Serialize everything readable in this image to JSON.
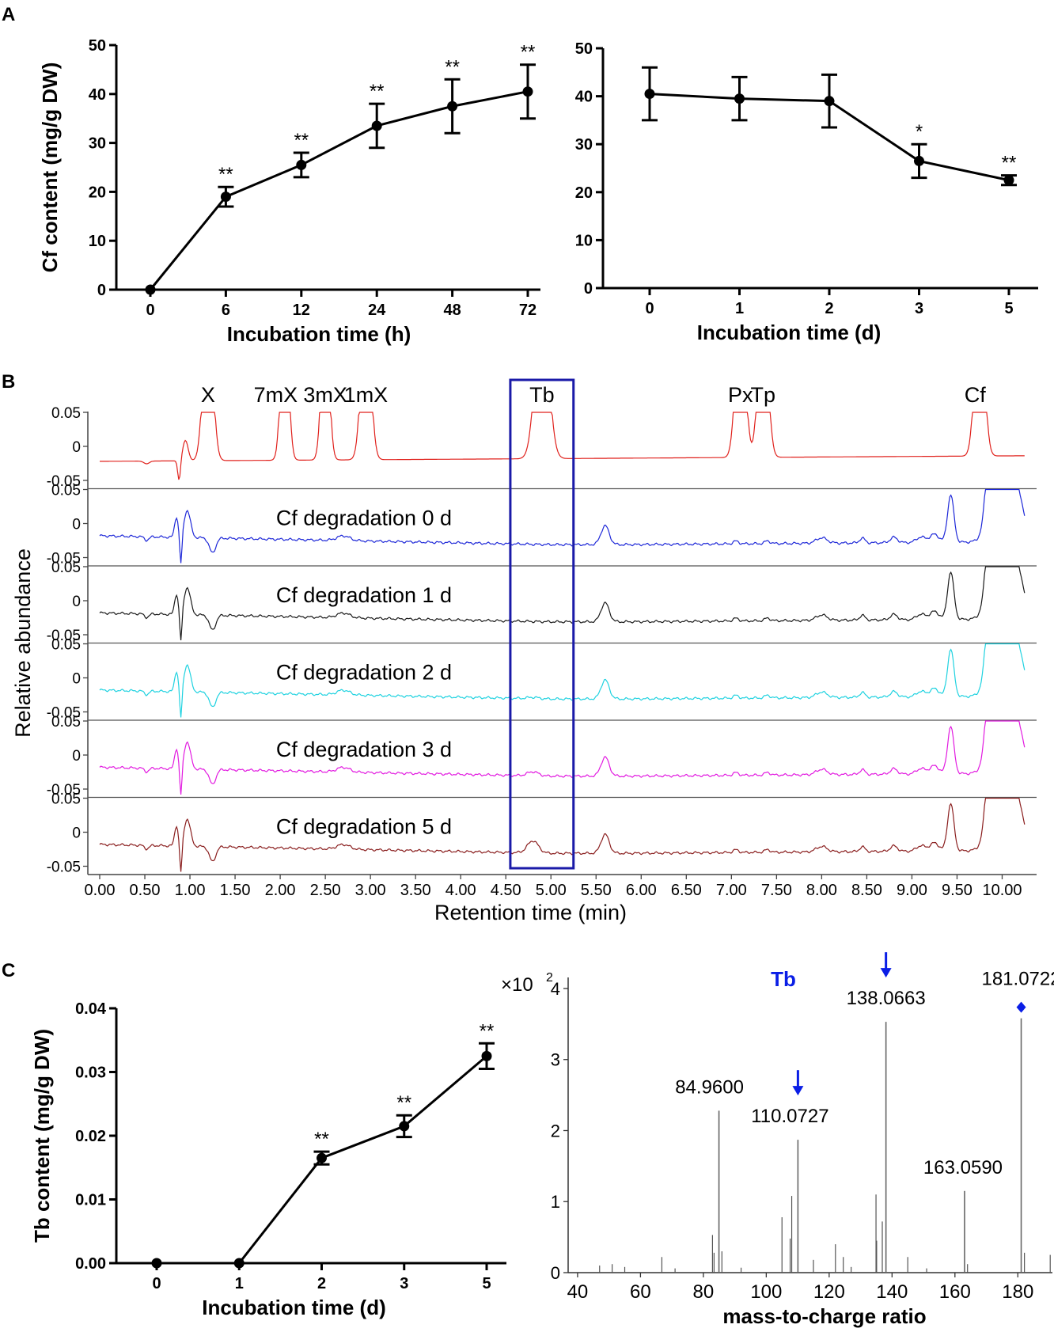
{
  "panel_labels": {
    "a": "A",
    "b": "B",
    "c": "C"
  },
  "colors": {
    "axis": "#000000",
    "box": "#1a1aa8",
    "accent": "#0a1ee6"
  },
  "chart_data": [
    {
      "id": "A1",
      "type": "line",
      "title": "",
      "xlabel": "Incubation time (h)",
      "ylabel": "Cf content (mg/g DW)",
      "categories": [
        "0",
        "6",
        "12",
        "24",
        "48",
        "72"
      ],
      "values": [
        0,
        19,
        25.5,
        33.5,
        37.5,
        40.5
      ],
      "errors": [
        0,
        2,
        2.5,
        4.5,
        5.5,
        5.5
      ],
      "significance": [
        "",
        "**",
        "**",
        "**",
        "**",
        "**"
      ],
      "ylim": [
        0,
        50
      ],
      "yticks": [
        "0",
        "10",
        "20",
        "30",
        "40",
        "50"
      ]
    },
    {
      "id": "A2",
      "type": "line",
      "title": "",
      "xlabel": "Incubation time (d)",
      "ylabel": "",
      "categories": [
        "0",
        "1",
        "2",
        "3",
        "5"
      ],
      "values": [
        40.5,
        39.5,
        39,
        26.5,
        22.5
      ],
      "errors": [
        5.5,
        4.5,
        5.5,
        3.5,
        1
      ],
      "significance": [
        "",
        "",
        "",
        "*",
        "**"
      ],
      "ylim": [
        0,
        50
      ],
      "yticks": [
        "0",
        "10",
        "20",
        "30",
        "40",
        "50"
      ]
    },
    {
      "id": "B",
      "type": "line",
      "title": "",
      "xlabel": "Retention time (min)",
      "ylabel": "Relative abundance",
      "xlim": [
        0,
        10.25
      ],
      "xticks": [
        "0.00",
        "0.50",
        "1.00",
        "1.50",
        "2.00",
        "2.50",
        "3.00",
        "3.50",
        "4.00",
        "4.50",
        "5.00",
        "5.50",
        "6.00",
        "6.50",
        "7.00",
        "7.50",
        "8.00",
        "8.50",
        "9.00",
        "9.50",
        "10.00"
      ],
      "yticks": [
        "0.05",
        "0",
        "-0.05"
      ],
      "ylim": [
        -0.05,
        0.05
      ],
      "peak_labels": [
        {
          "text": "X",
          "rt": 1.2
        },
        {
          "text": "7mX",
          "rt": 1.95
        },
        {
          "text": "3mX",
          "rt": 2.5
        },
        {
          "text": "1mX",
          "rt": 2.95
        },
        {
          "text": "Tb",
          "rt": 4.9
        },
        {
          "text": "Px",
          "rt": 7.1
        },
        {
          "text": "Tp",
          "rt": 7.35
        },
        {
          "text": "Cf",
          "rt": 9.7
        }
      ],
      "highlight_box": {
        "label": "Tb",
        "rt_range": [
          4.55,
          5.25
        ]
      },
      "series": [
        {
          "name": "",
          "color": "#e0211c",
          "kind": "standard"
        },
        {
          "name": "Cf degradation 0 d",
          "color": "#1e28d8",
          "tb": 0
        },
        {
          "name": "Cf degradation 1 d",
          "color": "#1a1a1a",
          "tb": 0
        },
        {
          "name": "Cf degradation 2 d",
          "color": "#1fd2e0",
          "tb": 0.002
        },
        {
          "name": "Cf degradation 3 d",
          "color": "#e21be0",
          "tb": 0.006
        },
        {
          "name": "Cf degradation 5 d",
          "color": "#8a1e1e",
          "tb": 0.018
        }
      ]
    },
    {
      "id": "C1",
      "type": "line",
      "title": "",
      "xlabel": "Incubation time (d)",
      "ylabel": "Tb content (mg/g DW)",
      "categories": [
        "0",
        "1",
        "2",
        "3",
        "5"
      ],
      "values": [
        0,
        0,
        0.0165,
        0.0215,
        0.0325
      ],
      "errors": [
        0,
        0,
        0.001,
        0.0017,
        0.002
      ],
      "significance": [
        "",
        "",
        "**",
        "**",
        "**"
      ],
      "ylim": [
        0,
        0.04
      ],
      "yticks": [
        "0.00",
        "0.01",
        "0.02",
        "0.03",
        "0.04"
      ]
    },
    {
      "id": "C2",
      "type": "bar",
      "title": "Tb",
      "xlabel": "mass-to-charge ratio",
      "ylabel": "",
      "y_multiplier": "×10",
      "y_exponent": "2",
      "xlim": [
        37,
        191
      ],
      "ylim": [
        0,
        4.1
      ],
      "xticks": [
        "40",
        "60",
        "80",
        "100",
        "120",
        "140",
        "160",
        "180"
      ],
      "yticks": [
        "0",
        "1",
        "2",
        "3",
        "4"
      ],
      "major_peaks": [
        {
          "mz": 84.96,
          "intensity": 2.28,
          "label": "84.9600",
          "marker": ""
        },
        {
          "mz": 110.0727,
          "intensity": 1.87,
          "label": "110.0727",
          "marker": "arrow"
        },
        {
          "mz": 138.0663,
          "intensity": 3.53,
          "label": "138.0663",
          "marker": "arrow"
        },
        {
          "mz": 163.059,
          "intensity": 1.15,
          "label": "163.0590",
          "marker": ""
        },
        {
          "mz": 181.0722,
          "intensity": 3.58,
          "label": "181.0722",
          "marker": "diamond"
        }
      ],
      "minor_peaks": [
        {
          "mz": 66.8,
          "intensity": 0.22
        },
        {
          "mz": 82.9,
          "intensity": 0.53
        },
        {
          "mz": 83.4,
          "intensity": 0.28
        },
        {
          "mz": 85.9,
          "intensity": 0.3
        },
        {
          "mz": 105.0,
          "intensity": 0.78
        },
        {
          "mz": 107.6,
          "intensity": 0.48
        },
        {
          "mz": 108.1,
          "intensity": 1.08
        },
        {
          "mz": 115.0,
          "intensity": 0.18
        },
        {
          "mz": 122.0,
          "intensity": 0.4
        },
        {
          "mz": 124.5,
          "intensity": 0.22
        },
        {
          "mz": 134.9,
          "intensity": 1.1
        },
        {
          "mz": 135.1,
          "intensity": 0.45
        },
        {
          "mz": 136.9,
          "intensity": 0.72
        },
        {
          "mz": 145.0,
          "intensity": 0.22
        },
        {
          "mz": 164.0,
          "intensity": 0.12
        },
        {
          "mz": 182.1,
          "intensity": 0.28
        },
        {
          "mz": 190.3,
          "intensity": 0.25
        },
        {
          "mz": 47.0,
          "intensity": 0.1
        },
        {
          "mz": 51.0,
          "intensity": 0.12
        },
        {
          "mz": 55.0,
          "intensity": 0.08
        },
        {
          "mz": 71.0,
          "intensity": 0.06
        },
        {
          "mz": 92.0,
          "intensity": 0.07
        },
        {
          "mz": 127.0,
          "intensity": 0.08
        },
        {
          "mz": 151.0,
          "intensity": 0.06
        }
      ]
    }
  ]
}
